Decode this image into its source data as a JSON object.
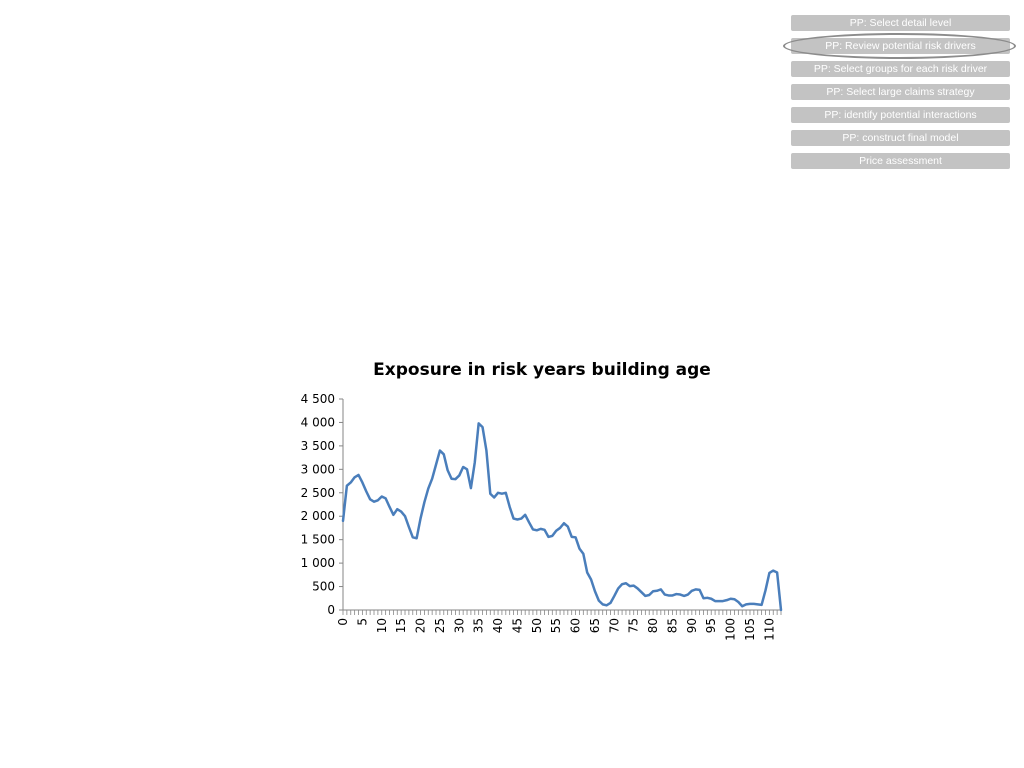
{
  "nav": {
    "items": [
      {
        "label": "PP: Select detail level",
        "active": false
      },
      {
        "label": "PP: Review potential risk drivers",
        "active": true
      },
      {
        "label": "PP: Select groups for each risk driver",
        "active": false
      },
      {
        "label": "PP: Select large claims strategy",
        "active": false
      },
      {
        "label": "PP: identify potential interactions",
        "active": false
      },
      {
        "label": "PP: construct final model",
        "active": false
      },
      {
        "label": "Price assessment",
        "active": false
      }
    ],
    "button_color": "#c3c3c3",
    "highlight_color": "#8c8c8c"
  },
  "chart_data": {
    "type": "line",
    "title": "Exposure in risk years building age",
    "xlabel": "",
    "ylabel": "",
    "ylim": [
      0,
      4500
    ],
    "yticks": [
      0,
      500,
      1000,
      1500,
      2000,
      2500,
      3000,
      3500,
      4000,
      4500
    ],
    "ytick_labels": [
      "0",
      "500",
      "1 000",
      "1 500",
      "2 000",
      "2 500",
      "3 000",
      "3 500",
      "4 000",
      "4 500"
    ],
    "xlim": [
      0,
      113
    ],
    "xtick_labels": [
      "0",
      "5",
      "10",
      "15",
      "20",
      "25",
      "30",
      "35",
      "40",
      "45",
      "50",
      "55",
      "60",
      "65",
      "70",
      "75",
      "80",
      "85",
      "90",
      "95",
      "100",
      "105",
      "110"
    ],
    "grid": false,
    "legend": "none",
    "line_color": "#4a7ebb",
    "series": [
      {
        "values": [
          1900,
          2650,
          2720,
          2830,
          2880,
          2720,
          2530,
          2360,
          2310,
          2340,
          2420,
          2380,
          2200,
          2030,
          2150,
          2100,
          2000,
          1770,
          1550,
          1530,
          1950,
          2300,
          2590,
          2800,
          3100,
          3400,
          3320,
          2980,
          2800,
          2790,
          2870,
          3050,
          3000,
          2600,
          3150,
          3980,
          3900,
          3400,
          2480,
          2400,
          2500,
          2480,
          2500,
          2200,
          1950,
          1930,
          1950,
          2030,
          1870,
          1720,
          1700,
          1730,
          1710,
          1560,
          1580,
          1690,
          1750,
          1850,
          1780,
          1560,
          1550,
          1310,
          1200,
          800,
          650,
          400,
          200,
          120,
          100,
          150,
          300,
          460,
          550,
          570,
          510,
          520,
          460,
          380,
          300,
          320,
          400,
          410,
          440,
          330,
          310,
          310,
          340,
          330,
          300,
          330,
          410,
          440,
          430,
          250,
          260,
          240,
          190,
          190,
          190,
          210,
          240,
          230,
          170,
          80,
          120,
          130,
          130,
          120,
          110,
          420,
          790,
          840,
          800,
          0
        ]
      }
    ]
  }
}
